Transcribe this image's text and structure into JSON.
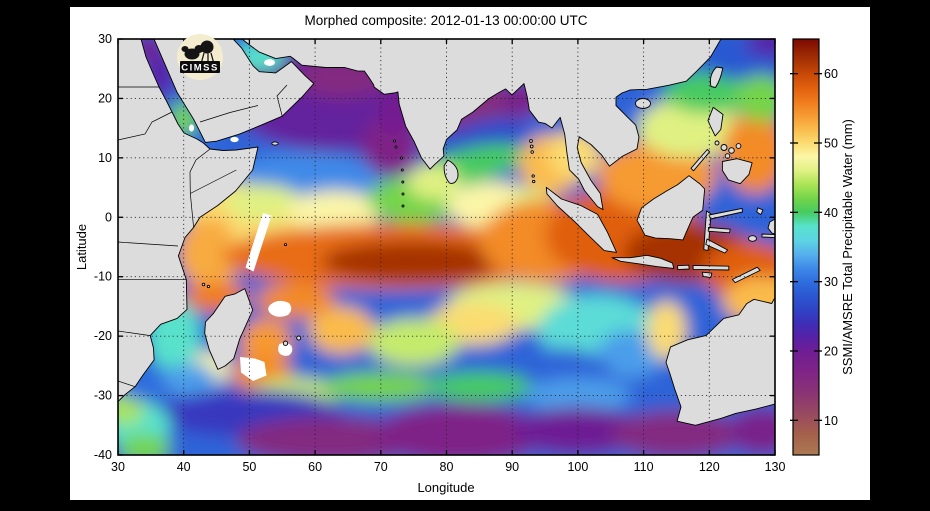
{
  "figure": {
    "title": "Morphed composite: 2012-01-13 00:00:00 UTC",
    "logo_text": "CIMSS",
    "background": "#000000",
    "canvas": "#FFFFFF",
    "land_color": "#DCDCDC",
    "missing_color": "#FFFFFF"
  },
  "chart_data": {
    "type": "heatmap",
    "title": "Morphed composite: 2012-01-13 00:00:00 UTC",
    "xlabel": "Longitude",
    "ylabel": "Latitude",
    "xlim": [
      30,
      130
    ],
    "ylim": [
      -40,
      30
    ],
    "x_ticks": [
      30,
      40,
      50,
      60,
      70,
      80,
      90,
      100,
      110,
      120,
      130
    ],
    "y_ticks": [
      30,
      20,
      10,
      0,
      -10,
      -20,
      -30,
      -40
    ],
    "grid": "dotted",
    "projection": "equirectangular",
    "colorbar": {
      "label": "SSMI/AMSRE Total Precipitable Water (mm)",
      "ticks": [
        10,
        20,
        30,
        40,
        50,
        60
      ],
      "range": [
        5,
        65
      ],
      "colormap": [
        [
          5,
          "#AC7A52"
        ],
        [
          8,
          "#A5604C"
        ],
        [
          11,
          "#97495F"
        ],
        [
          14,
          "#8A3375"
        ],
        [
          17,
          "#7F2487"
        ],
        [
          20,
          "#6E1D94"
        ],
        [
          22,
          "#5722A8"
        ],
        [
          24,
          "#3E2EB8"
        ],
        [
          26,
          "#2F44C6"
        ],
        [
          28,
          "#2B58D2"
        ],
        [
          30,
          "#2F6EDE"
        ],
        [
          32,
          "#3F8AE8"
        ],
        [
          34,
          "#57B1EC"
        ],
        [
          36,
          "#5DD5E2"
        ],
        [
          38,
          "#58E2CB"
        ],
        [
          40,
          "#46CB60"
        ],
        [
          42,
          "#74D44A"
        ],
        [
          44,
          "#AAE455"
        ],
        [
          46,
          "#E0F182"
        ],
        [
          48,
          "#FBF6A8"
        ],
        [
          50,
          "#FBDC72"
        ],
        [
          52,
          "#FABB4C"
        ],
        [
          54,
          "#F69A32"
        ],
        [
          56,
          "#EF7B1D"
        ],
        [
          58,
          "#E05F0E"
        ],
        [
          60,
          "#C64807"
        ],
        [
          62,
          "#A53104"
        ],
        [
          65,
          "#7C0A02"
        ]
      ]
    },
    "base_value": 29,
    "field_points": [
      [
        63,
        20,
        16,
        9,
        21,
        0
      ],
      [
        64,
        23.5,
        7,
        3.5,
        16,
        0
      ],
      [
        71.5,
        12,
        4.5,
        5,
        17,
        0
      ],
      [
        72,
        17.5,
        2.5,
        4,
        19,
        0
      ],
      [
        85,
        18.5,
        8,
        4.5,
        15,
        0
      ],
      [
        91.5,
        20,
        3.5,
        3,
        18,
        0
      ],
      [
        84.5,
        13,
        8,
        3,
        27,
        -18
      ],
      [
        83,
        8.5,
        9,
        3,
        40,
        -15
      ],
      [
        58,
        6,
        12,
        5,
        32,
        0
      ],
      [
        47,
        2,
        8,
        4,
        50,
        0
      ],
      [
        44,
        -6,
        5,
        6,
        53,
        0
      ],
      [
        55,
        -2,
        8,
        5,
        50,
        0
      ],
      [
        52,
        2.5,
        6,
        3,
        46,
        0
      ],
      [
        63,
        1,
        7,
        3.5,
        48,
        0
      ],
      [
        75,
        3,
        7,
        4,
        42,
        0
      ],
      [
        87,
        2,
        7,
        4,
        48,
        0
      ],
      [
        93,
        0,
        4,
        5,
        46,
        0
      ],
      [
        72,
        -6.5,
        26,
        5.5,
        57,
        0
      ],
      [
        75,
        -7.5,
        14,
        3.5,
        62,
        0
      ],
      [
        95,
        -4,
        10,
        7,
        55,
        0
      ],
      [
        107,
        -3,
        12,
        8,
        58,
        0
      ],
      [
        117,
        -6,
        10,
        5,
        62,
        0
      ],
      [
        126,
        -9,
        7,
        5,
        58,
        0
      ],
      [
        128,
        -14,
        6,
        4,
        52,
        0
      ],
      [
        112,
        7,
        9,
        6,
        54,
        0
      ],
      [
        117,
        15,
        8,
        5,
        46,
        0
      ],
      [
        120,
        21,
        7,
        3.5,
        40,
        0
      ],
      [
        126,
        27,
        8,
        4,
        28,
        0
      ],
      [
        129.5,
        29.5,
        4,
        2.5,
        22,
        0
      ],
      [
        127,
        11,
        5,
        7,
        55,
        0
      ],
      [
        128,
        20,
        4,
        4,
        42,
        0
      ],
      [
        96,
        9,
        5,
        5,
        52,
        0
      ],
      [
        99.5,
        10.5,
        4,
        4,
        50,
        0
      ],
      [
        90,
        -15,
        10,
        4,
        46,
        0
      ],
      [
        103,
        -19,
        9,
        6,
        37,
        0
      ],
      [
        108,
        -23,
        5,
        4,
        33,
        0
      ],
      [
        97,
        -26,
        8,
        4,
        29,
        0
      ],
      [
        113.5,
        -19,
        3,
        5,
        50,
        0
      ],
      [
        84,
        -18,
        7,
        3.5,
        50,
        0
      ],
      [
        75,
        -21,
        7,
        4,
        45,
        0
      ],
      [
        64,
        -19,
        5,
        4,
        52,
        0
      ],
      [
        57,
        -14,
        6,
        3,
        55,
        0
      ],
      [
        45,
        -13.5,
        5,
        2.5,
        56,
        0
      ],
      [
        52.5,
        -21,
        4,
        4,
        54,
        0
      ],
      [
        52,
        -26.5,
        4.5,
        3.5,
        55,
        0
      ],
      [
        44,
        -25.5,
        3,
        3,
        48,
        0
      ],
      [
        38.5,
        -20,
        4,
        6,
        38,
        0
      ],
      [
        41,
        -27.5,
        4,
        3,
        33,
        0
      ],
      [
        57,
        -29.5,
        7,
        2.5,
        45,
        0
      ],
      [
        70,
        -28.5,
        9,
        2.5,
        42,
        0
      ],
      [
        85,
        -28.5,
        8,
        2.5,
        40,
        0
      ],
      [
        100,
        -30,
        8,
        3,
        33,
        0
      ],
      [
        50,
        -33,
        14,
        4,
        25,
        0
      ],
      [
        62,
        -37.5,
        14,
        4,
        16,
        0
      ],
      [
        82,
        -36.5,
        13,
        5,
        17,
        0
      ],
      [
        100,
        -36,
        10,
        4,
        20,
        0
      ],
      [
        115,
        -36.5,
        10,
        4,
        16,
        0
      ],
      [
        128,
        -36,
        5,
        4,
        18,
        0
      ],
      [
        33,
        -35,
        5,
        4,
        38,
        0
      ],
      [
        31,
        -32,
        3,
        3,
        44,
        0
      ],
      [
        34,
        -39,
        4,
        2.5,
        42,
        0
      ],
      [
        33.5,
        -28,
        3.5,
        3,
        30,
        0
      ],
      [
        36.5,
        24,
        2.5,
        4,
        22,
        0
      ],
      [
        34.5,
        28.5,
        2.5,
        2.5,
        20,
        0
      ],
      [
        40,
        16.5,
        2.2,
        3,
        42,
        0
      ],
      [
        43,
        12.5,
        2,
        1.5,
        30,
        0
      ],
      [
        51.5,
        27,
        4,
        2.5,
        38,
        0
      ],
      [
        78,
        6,
        4,
        3,
        46,
        0
      ]
    ],
    "missing_data_note": "White gaps: swath wedge near 50-53E/0 to -9, patches east and southeast of Madagascar, south Red Sea, Gulf of Aden, Persian Gulf"
  }
}
